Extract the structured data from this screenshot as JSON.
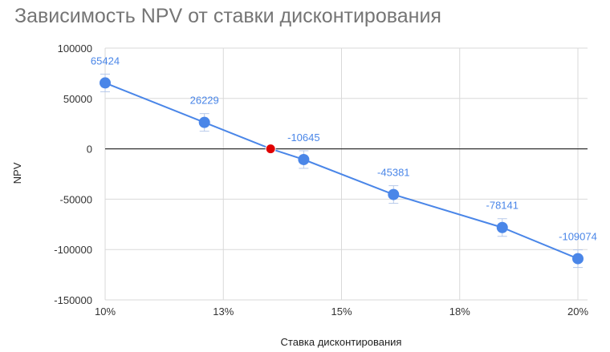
{
  "chart_data": {
    "type": "line",
    "title": "Зависимость NPV от ставки дисконтирования",
    "xlabel": "Ставка дисконтирования",
    "ylabel": "NPV",
    "x_ticks": [
      "10%",
      "13%",
      "15%",
      "18%",
      "20%"
    ],
    "y_ticks": [
      "100000",
      "50000",
      "0",
      "-50000",
      "-100000",
      "-150000"
    ],
    "xlim": [
      10,
      20
    ],
    "ylim": [
      -150000,
      100000
    ],
    "grid": true,
    "legend": "none",
    "series": [
      {
        "x": [
          10,
          12.1,
          13.5,
          14.2,
          16.1,
          18.4,
          20
        ],
        "values": [
          65424,
          26229,
          null,
          -10645,
          -45381,
          -78141,
          -109074
        ],
        "labels": [
          "65424",
          "26229",
          null,
          "-10645",
          "-45381",
          "-78141",
          "-109074"
        ],
        "color": "#4a86e8"
      }
    ],
    "highlight_point": {
      "x": 13.5,
      "y": 0,
      "color": "#e00000"
    },
    "zero_line": true
  }
}
